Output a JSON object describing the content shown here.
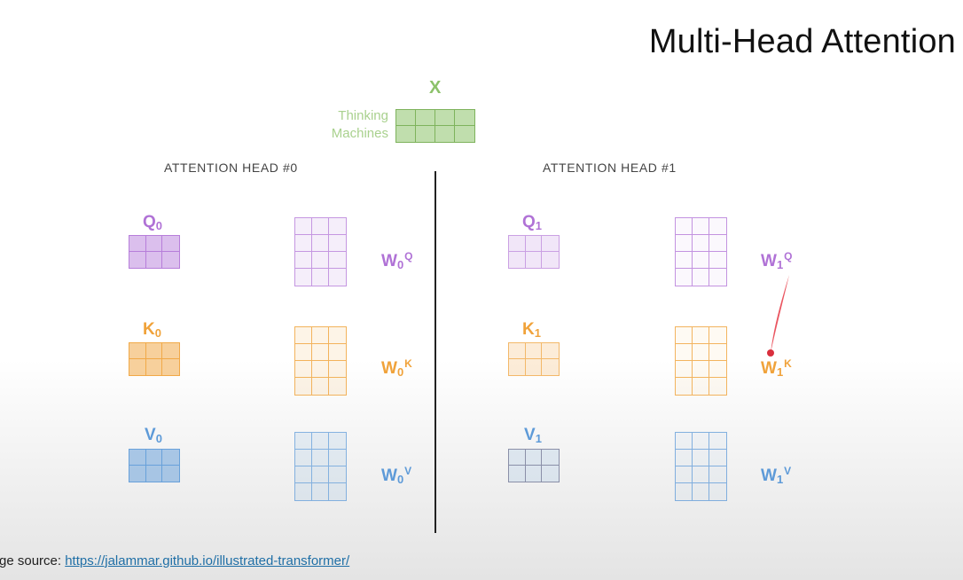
{
  "slide": {
    "title": "Multi-Head Attention"
  },
  "input": {
    "label": "X",
    "words": [
      "Thinking",
      "Machines"
    ],
    "color": "#8cc26a"
  },
  "heads": [
    {
      "title": "ATTENTION HEAD #0",
      "index": "0",
      "query": {
        "letter": "Q",
        "weight_sup": "Q"
      },
      "key": {
        "letter": "K",
        "weight_sup": "K"
      },
      "value": {
        "letter": "V",
        "weight_sup": "V"
      }
    },
    {
      "title": "ATTENTION HEAD #1",
      "index": "1",
      "query": {
        "letter": "Q",
        "weight_sup": "Q"
      },
      "key": {
        "letter": "K",
        "weight_sup": "K"
      },
      "value": {
        "letter": "V",
        "weight_sup": "V"
      }
    }
  ],
  "weight_letter": "W",
  "colors": {
    "query": "#b072d6",
    "key": "#f0a23a",
    "value": "#5d9ad8",
    "input": "#8cc26a",
    "annotation": "#e8434f"
  },
  "footer": {
    "prefix": "ge source: ",
    "link": "https://jalammar.github.io/illustrated-transformer/"
  }
}
